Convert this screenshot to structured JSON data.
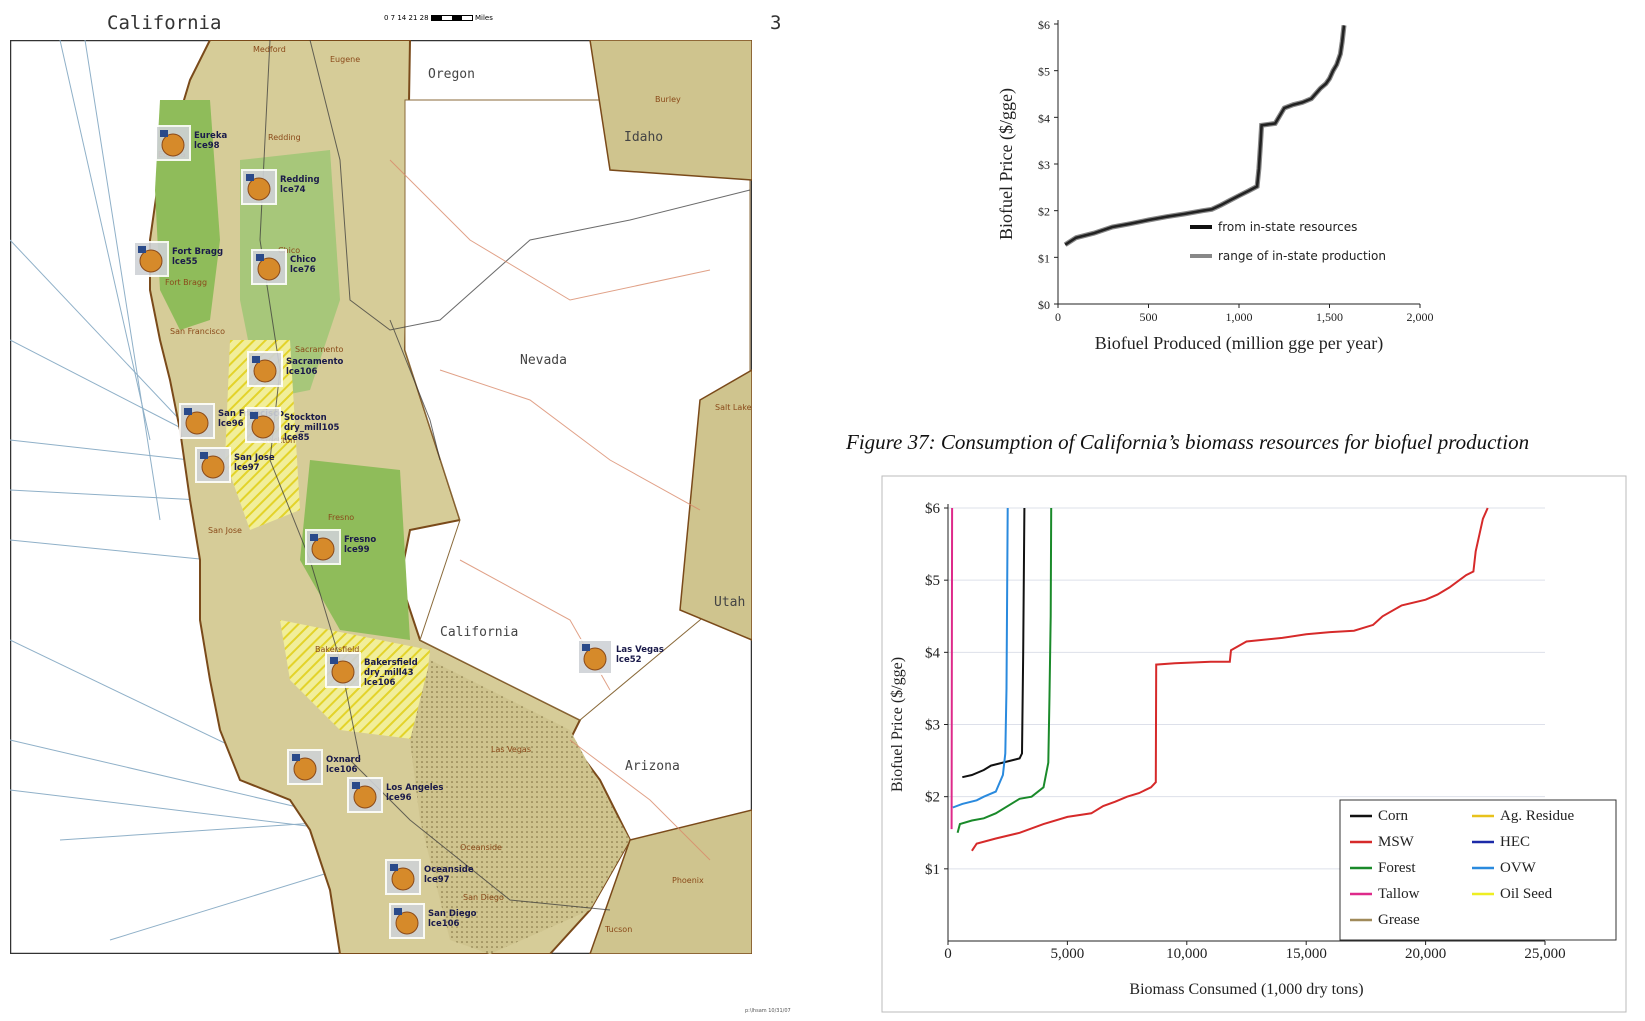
{
  "map": {
    "title": "California",
    "page_number": "3",
    "scale_ticks": "0 7 14 21 28",
    "scale_unit": "Miles",
    "credit": "p:\\lhsam 10/31/07",
    "region_labels": [
      "Oregon",
      "Idaho",
      "Nevada",
      "California",
      "Utah",
      "Arizona"
    ],
    "city_labels": [
      "Medford",
      "Eugene",
      "Burley",
      "Redding",
      "Eureka",
      "Chico",
      "Fort Bragg",
      "Sacramento",
      "San Francisco",
      "Stockton",
      "San Jose",
      "Fresno",
      "Bakersfield",
      "Las Vegas",
      "Oceanside",
      "San Diego",
      "Tucson",
      "Phoenix",
      "Salt Lake City"
    ],
    "facilities": [
      {
        "name": "Eureka",
        "code": "lce98"
      },
      {
        "name": "Redding",
        "code": "lce74"
      },
      {
        "name": "Fort Bragg",
        "code": "lce55"
      },
      {
        "name": "Chico",
        "code": "lce76"
      },
      {
        "name": "Sacramento",
        "code": "lce106"
      },
      {
        "name": "San Francisco",
        "code": "lce96"
      },
      {
        "name": "Stockton",
        "code": "dry_mill105 lce85"
      },
      {
        "name": "San Jose",
        "code": "lce97"
      },
      {
        "name": "Fresno",
        "code": "lce99"
      },
      {
        "name": "Bakersfield",
        "code": "dry_mill43 lce106"
      },
      {
        "name": "Las Vegas",
        "code": "lce52"
      },
      {
        "name": "Oxnard",
        "code": "lce106"
      },
      {
        "name": "Los Angeles",
        "code": "lce96"
      },
      {
        "name": "Oceanside",
        "code": "lce97"
      },
      {
        "name": "San Diego",
        "code": "lce106"
      }
    ]
  },
  "caption": "Figure 37: Consumption of California’s biomass resources for biofuel production",
  "chart_data": [
    {
      "type": "line",
      "xlabel": "Biofuel Produced (million gge per year)",
      "ylabel": "Biofuel Price ($/gge)",
      "xlim": [
        0,
        2000
      ],
      "ylim": [
        0,
        6
      ],
      "x_ticks": [
        "0",
        "500",
        "1,000",
        "1,500",
        "2,000"
      ],
      "y_ticks": [
        "$0",
        "$1",
        "$2",
        "$3",
        "$4",
        "$5",
        "$6"
      ],
      "legend_position": "lower-right",
      "legend": [
        {
          "label": "from in-state resources",
          "color": "#111111"
        },
        {
          "label": "range of in-state production",
          "color": "#888888"
        }
      ],
      "series": [
        {
          "name": "from in-state resources",
          "color": "#222222",
          "x": [
            40,
            100,
            200,
            300,
            400,
            500,
            600,
            700,
            800,
            850,
            900,
            950,
            1000,
            1050,
            1100,
            1110,
            1120,
            1125,
            1200,
            1250,
            1300,
            1350,
            1400,
            1450,
            1480,
            1500,
            1520,
            1540,
            1560,
            1570,
            1580
          ],
          "y": [
            1.27,
            1.42,
            1.52,
            1.65,
            1.72,
            1.8,
            1.87,
            1.93,
            2.0,
            2.03,
            2.12,
            2.22,
            2.32,
            2.42,
            2.52,
            2.9,
            3.5,
            3.83,
            3.87,
            4.2,
            4.27,
            4.32,
            4.4,
            4.62,
            4.72,
            4.83,
            5.0,
            5.13,
            5.36,
            5.62,
            5.97
          ]
        }
      ]
    },
    {
      "type": "line",
      "xlabel": "Biomass Consumed (1,000 dry tons)",
      "ylabel": "Biofuel Price ($/gge)",
      "xlim": [
        0,
        25000
      ],
      "ylim": [
        0,
        6
      ],
      "x_ticks": [
        "0",
        "5,000",
        "10,000",
        "15,000",
        "20,000",
        "25,000"
      ],
      "y_ticks": [
        "$1",
        "$2",
        "$3",
        "$4",
        "$5",
        "$6"
      ],
      "grid": true,
      "legend_position": "lower-right",
      "legend": [
        {
          "label": "Corn",
          "color": "#111111"
        },
        {
          "label": "Ag. Residue",
          "color": "#e8c21c"
        },
        {
          "label": "MSW",
          "color": "#d62a2a"
        },
        {
          "label": "HEC",
          "color": "#1c2aa8"
        },
        {
          "label": "Forest",
          "color": "#1a8a2a"
        },
        {
          "label": "OVW",
          "color": "#2a8ade"
        },
        {
          "label": "Tallow",
          "color": "#de2a8a"
        },
        {
          "label": "Oil Seed",
          "color": "#eeee22"
        },
        {
          "label": "Grease",
          "color": "#a08a5a"
        }
      ],
      "series": [
        {
          "name": "Corn",
          "color": "#111111",
          "x": [
            600,
            1000,
            1500,
            1800,
            2400,
            3000,
            3100,
            3150,
            3200
          ],
          "y": [
            2.27,
            2.3,
            2.37,
            2.43,
            2.48,
            2.53,
            2.6,
            4.0,
            6.0
          ]
        },
        {
          "name": "MSW",
          "color": "#d62a2a",
          "x": [
            1000,
            1200,
            2000,
            3000,
            4000,
            5000,
            6000,
            6500,
            7000,
            7500,
            8000,
            8500,
            8700,
            8720,
            9500,
            11000,
            11800,
            11850,
            12500,
            14000,
            15000,
            16000,
            17000,
            17800,
            18200,
            19000,
            20000,
            20500,
            21000,
            21700,
            22000,
            22100,
            22400,
            22600
          ],
          "y": [
            1.25,
            1.35,
            1.42,
            1.5,
            1.62,
            1.72,
            1.77,
            1.87,
            1.93,
            2.0,
            2.05,
            2.13,
            2.2,
            3.83,
            3.85,
            3.87,
            3.87,
            4.03,
            4.15,
            4.2,
            4.25,
            4.28,
            4.3,
            4.38,
            4.5,
            4.65,
            4.73,
            4.8,
            4.9,
            5.07,
            5.12,
            5.4,
            5.85,
            6.0
          ]
        },
        {
          "name": "Forest",
          "color": "#1a8a2a",
          "x": [
            400,
            500,
            1000,
            1500,
            2000,
            3000,
            3500,
            4000,
            4200,
            4250,
            4300,
            4320
          ],
          "y": [
            1.5,
            1.62,
            1.67,
            1.7,
            1.77,
            1.97,
            2.0,
            2.13,
            2.47,
            3.4,
            4.5,
            6.0
          ]
        },
        {
          "name": "OVW",
          "color": "#2a8ade",
          "x": [
            200,
            600,
            1200,
            1500,
            2000,
            2300,
            2400,
            2450,
            2500
          ],
          "y": [
            1.85,
            1.9,
            1.95,
            2.0,
            2.07,
            2.3,
            2.6,
            3.5,
            6.0
          ]
        },
        {
          "name": "Tallow",
          "color": "#de2a8a",
          "x": [
            150,
            160,
            170
          ],
          "y": [
            1.55,
            3.5,
            6.0
          ]
        }
      ]
    }
  ]
}
